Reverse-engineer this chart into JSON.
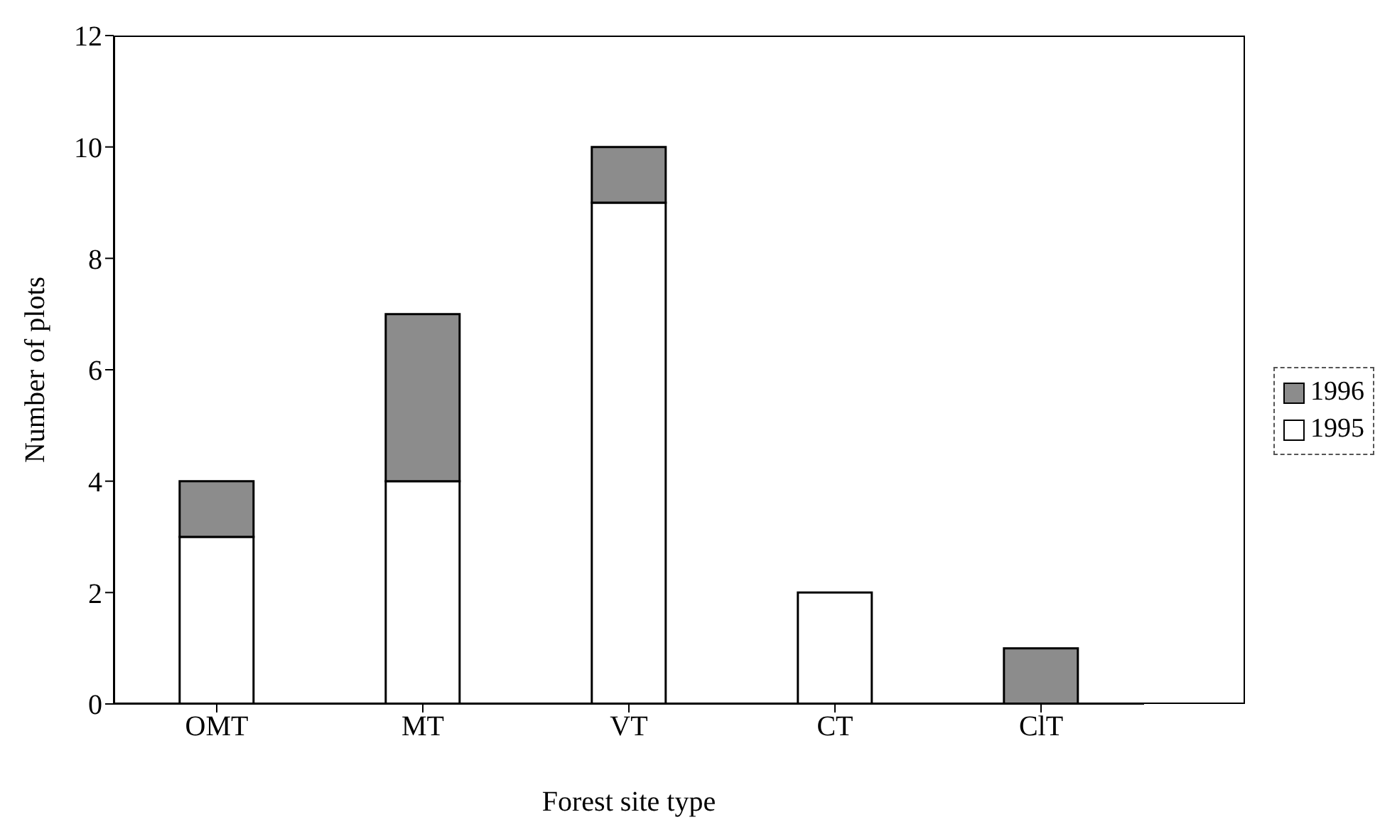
{
  "chart_data": {
    "type": "bar",
    "stacked": true,
    "xlabel": "Forest site type",
    "ylabel": "Number of plots",
    "categories": [
      "OMT",
      "MT",
      "VT",
      "CT",
      "ClT"
    ],
    "series": [
      {
        "name": "1995",
        "color": "#ffffff",
        "values": [
          3,
          4,
          9,
          2,
          0
        ]
      },
      {
        "name": "1996",
        "color": "#8c8c8c",
        "values": [
          1,
          3,
          1,
          0,
          1
        ]
      }
    ],
    "ylim": [
      0,
      12
    ],
    "yticks": [
      0,
      2,
      4,
      6,
      8,
      10,
      12
    ],
    "grid": false,
    "legend": "right"
  }
}
